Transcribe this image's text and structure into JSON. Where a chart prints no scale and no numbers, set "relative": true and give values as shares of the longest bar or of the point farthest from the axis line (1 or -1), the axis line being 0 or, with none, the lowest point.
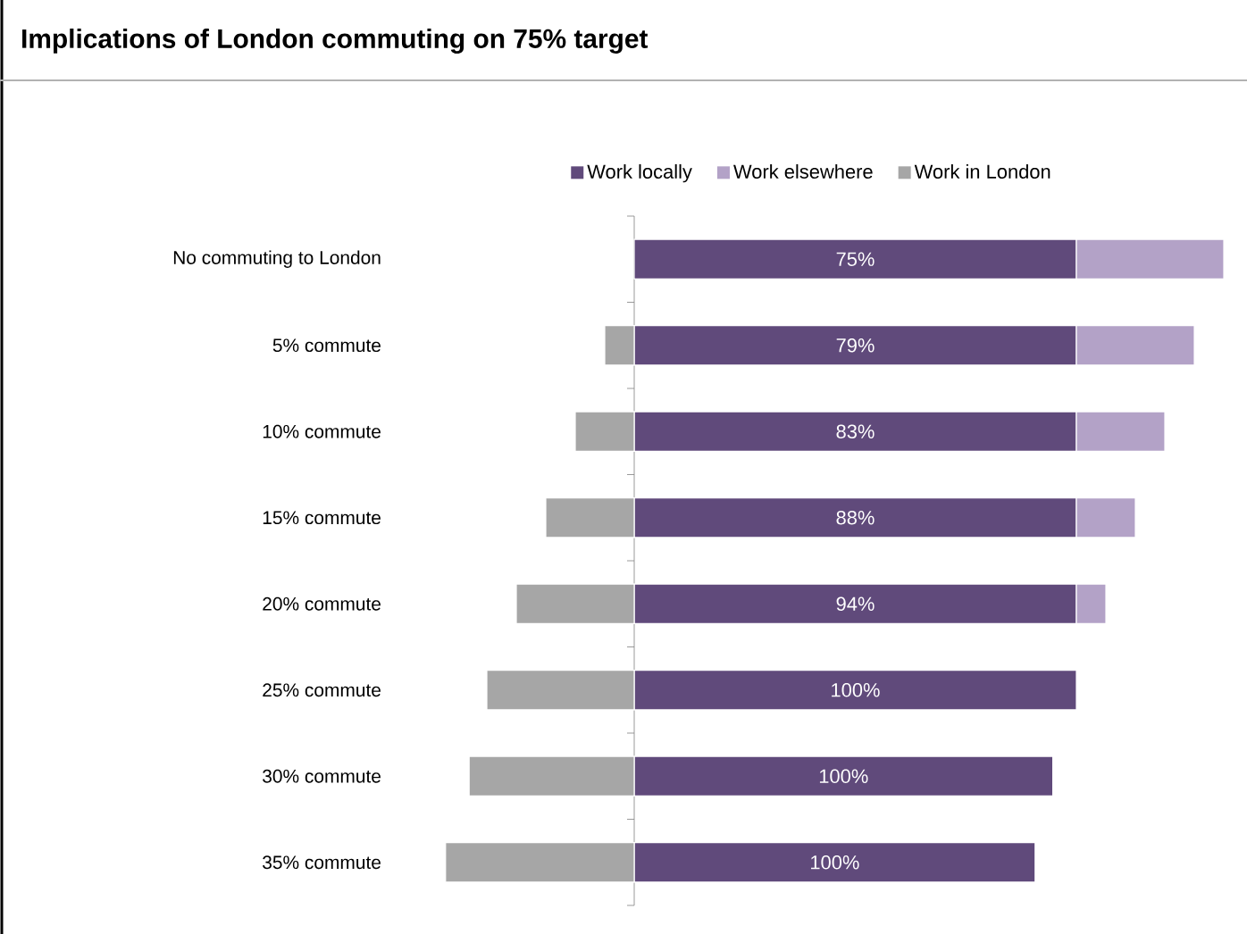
{
  "chart_data": {
    "type": "bar",
    "orientation": "horizontal",
    "stacked": true,
    "relative": true,
    "title": "Implications of London commuting on 75% target",
    "categories": [
      "No commuting to London",
      "5% commute",
      "10% commute",
      "15% commute",
      "20% commute",
      "25% commute",
      "30% commute",
      "35% commute"
    ],
    "series": [
      {
        "name": "Work locally",
        "color": "#604a7b",
        "values": [
          0.75,
          0.75,
          0.75,
          0.75,
          0.75,
          0.75,
          0.71,
          0.68
        ]
      },
      {
        "name": "Work elsewhere",
        "color": "#b3a2c7",
        "values": [
          0.25,
          0.2,
          0.15,
          0.1,
          0.05,
          0,
          0,
          0
        ]
      },
      {
        "name": "Work in London",
        "color": "#a6a6a6",
        "values": [
          0,
          -0.05,
          -0.1,
          -0.15,
          -0.2,
          -0.25,
          -0.28,
          -0.32
        ]
      }
    ],
    "annotations": [
      "75%",
      "79%",
      "83%",
      "88%",
      "94%",
      "100%",
      "100%",
      "100%"
    ],
    "legend": "top"
  }
}
